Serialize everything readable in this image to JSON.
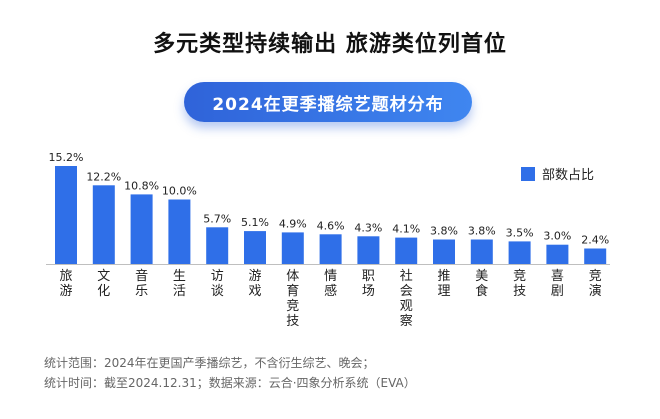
{
  "headline": "多元类型持续输出 旅游类位列首位",
  "pill_title": "2024在更季播综艺题材分布",
  "footer": {
    "line1": "统计范围：2024年在更国产季播综艺，不含衍生综艺、晚会；",
    "line2": "统计时间：截至2024.12.31；数据来源：云合·四象分析系统（EVA）"
  },
  "colors": {
    "bar": "#2f6fe8",
    "pill": "#3a79e8"
  },
  "chart_data": {
    "type": "bar",
    "categories": [
      "旅游",
      "文化",
      "音乐",
      "生活",
      "访谈",
      "游戏",
      "体育竞技",
      "情感",
      "职场",
      "社会观察",
      "推理",
      "美食",
      "竞技",
      "喜剧",
      "竞演"
    ],
    "series": [
      {
        "name": "部数占比",
        "values": [
          15.2,
          12.2,
          10.8,
          10.0,
          5.7,
          5.1,
          4.9,
          4.6,
          4.3,
          4.1,
          3.8,
          3.8,
          3.5,
          3.0,
          2.4
        ],
        "labels": [
          "15.2%",
          "12.2%",
          "10.8%",
          "10.0%",
          "5.7%",
          "5.1%",
          "4.9%",
          "4.6%",
          "4.3%",
          "4.1%",
          "3.8%",
          "3.8%",
          "3.5%",
          "3.0%",
          "2.4%"
        ]
      }
    ],
    "ylim": [
      0,
      15.2
    ],
    "grid": false,
    "legend_position": "top-right"
  }
}
